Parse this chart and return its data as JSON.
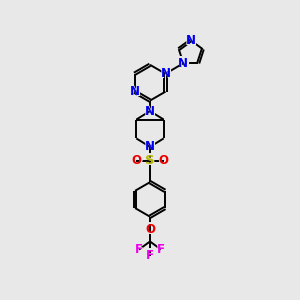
{
  "bg_color": "#e8e8e8",
  "bond_color": "#000000",
  "N_color": "#0000ee",
  "S_color": "#b8b800",
  "O_color": "#ee0000",
  "F_color": "#ee00ee",
  "font_size_atom": 8.5,
  "line_width": 1.4,
  "figsize": [
    3.0,
    3.0
  ],
  "dpi": 100,
  "xlim": [
    0,
    10
  ],
  "ylim": [
    0,
    14
  ]
}
